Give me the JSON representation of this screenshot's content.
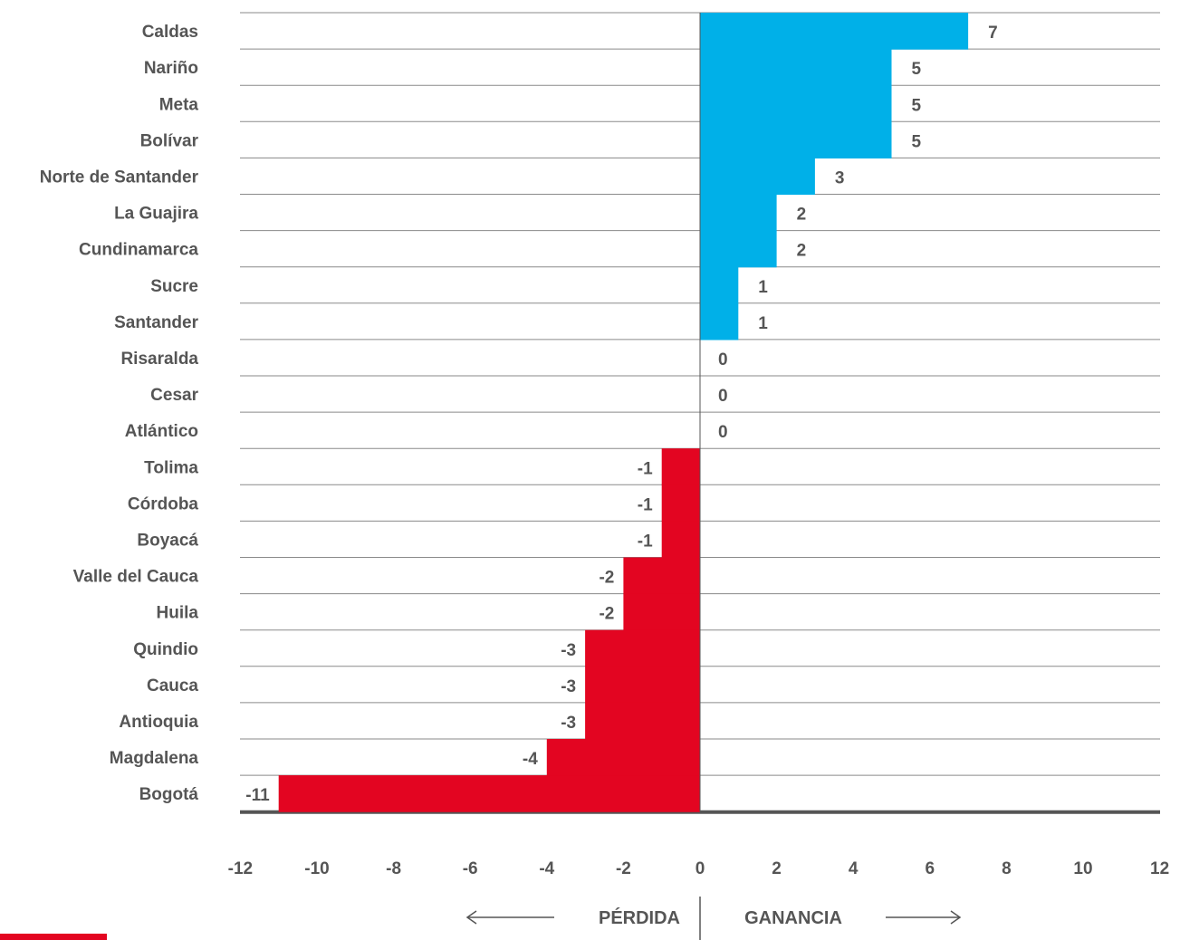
{
  "chart_data": {
    "type": "bar",
    "orientation": "horizontal",
    "categories": [
      "Caldas",
      "Nariño",
      "Meta",
      "Bolívar",
      "Norte de Santander",
      "La Guajira",
      "Cundinamarca",
      "Sucre",
      "Santander",
      "Risaralda",
      "Cesar",
      "Atlántico",
      "Tolima",
      "Córdoba",
      "Boyacá",
      "Valle del Cauca",
      "Huila",
      "Quindio",
      "Cauca",
      "Antioquia",
      "Magdalena",
      "Bogotá"
    ],
    "values": [
      7,
      5,
      5,
      5,
      3,
      2,
      2,
      1,
      1,
      0,
      0,
      0,
      -1,
      -1,
      -1,
      -2,
      -2,
      -3,
      -3,
      -3,
      -4,
      -11
    ],
    "xlim": [
      -12,
      12
    ],
    "xticks": [
      "-12",
      "-10",
      "-8",
      "-6",
      "-4",
      "-2",
      "0",
      "2",
      "4",
      "6",
      "8",
      "10",
      "12"
    ],
    "grid": true,
    "colors": {
      "positive": "#00b0e8",
      "negative": "#e30521",
      "text": "#555555",
      "grid": "#8a8a8a",
      "axis": "#555555"
    },
    "direction_labels": {
      "left": "PÉRDIDA",
      "right": "GANANCIA"
    }
  },
  "accent_color": "#e30521"
}
